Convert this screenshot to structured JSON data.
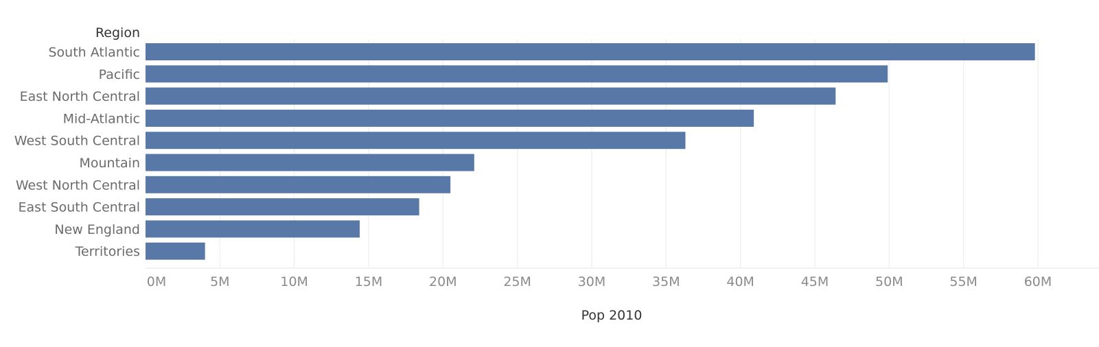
{
  "chart_data": {
    "type": "bar",
    "orientation": "horizontal",
    "row_header": "Region",
    "xlabel": "Pop 2010",
    "categories": [
      "South Atlantic",
      "Pacific",
      "East North Central",
      "Mid-Atlantic",
      "West South Central",
      "Mountain",
      "West North Central",
      "East South Central",
      "New England",
      "Territories"
    ],
    "values": [
      59.8,
      49.9,
      46.4,
      40.9,
      36.3,
      22.1,
      20.5,
      18.4,
      14.4,
      4.0
    ],
    "value_unit": "M",
    "xlim": [
      0,
      60
    ],
    "xticks": [
      0,
      5,
      10,
      15,
      20,
      25,
      30,
      35,
      40,
      45,
      50,
      55,
      60
    ],
    "xtick_labels": [
      "0M",
      "5M",
      "10M",
      "15M",
      "20M",
      "25M",
      "30M",
      "35M",
      "40M",
      "45M",
      "50M",
      "55M",
      "60M"
    ],
    "bar_color": "#5878a8",
    "grid": true
  }
}
